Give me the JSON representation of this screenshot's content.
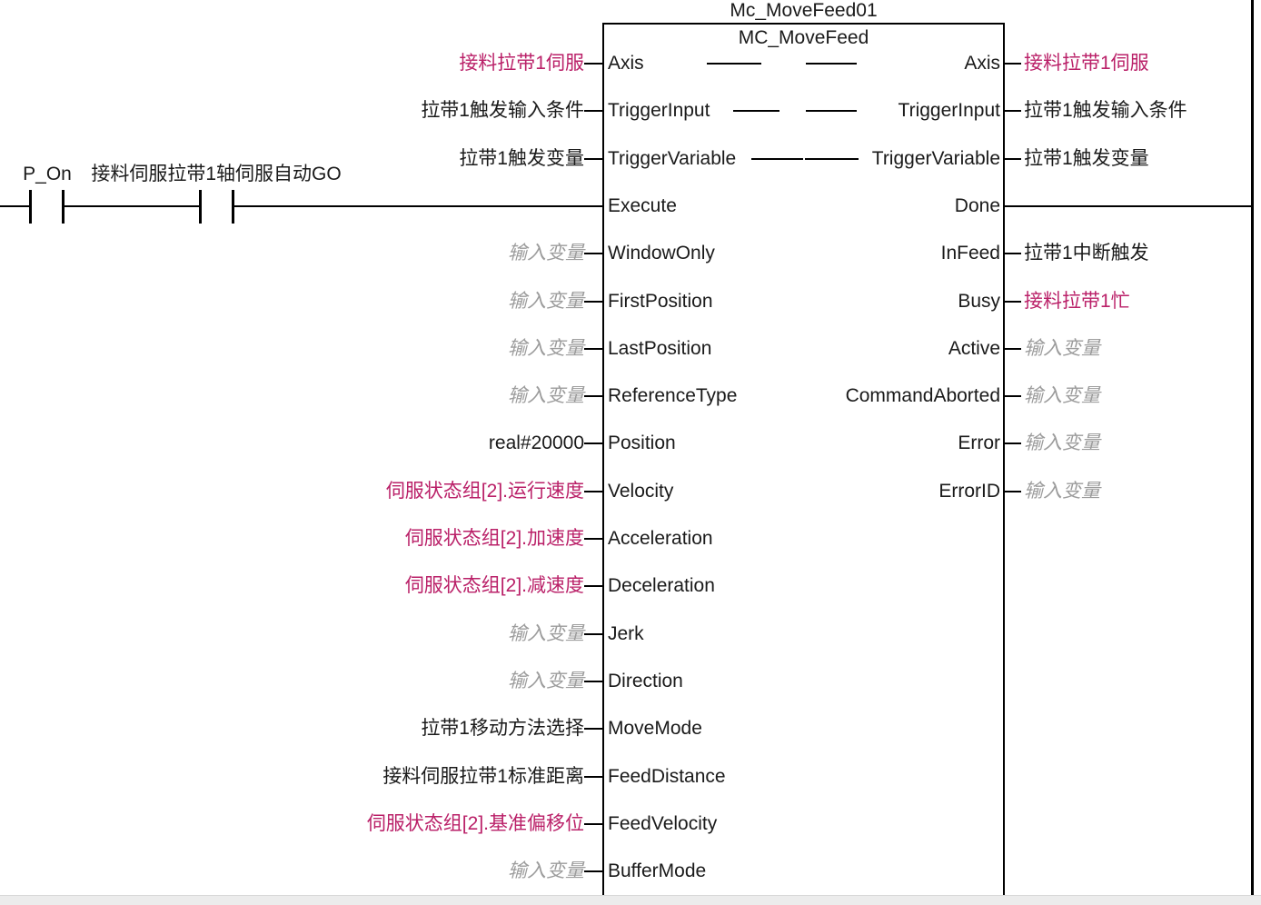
{
  "diagram": {
    "instance_name": "Mc_MoveFeed01",
    "function_block": "MC_MoveFeed",
    "rung": {
      "contacts": [
        {
          "label": "P_On"
        },
        {
          "label": "接料伺服拉带1轴伺服自动GO"
        }
      ]
    },
    "colors": {
      "line": "#000000",
      "text": "#1a1a1a",
      "variable_text": "#ba2068",
      "placeholder_text": "#9c9c9c"
    },
    "inputs": [
      {
        "pin": "Axis",
        "value": "接料拉带1伺服",
        "style": "variable"
      },
      {
        "pin": "TriggerInput",
        "value": "拉带1触发输入条件",
        "style": "default"
      },
      {
        "pin": "TriggerVariable",
        "value": "拉带1触发变量",
        "style": "default"
      },
      {
        "pin": "Execute",
        "value": "",
        "style": "rung"
      },
      {
        "pin": "WindowOnly",
        "value": "输入变量",
        "style": "placeholder"
      },
      {
        "pin": "FirstPosition",
        "value": "输入变量",
        "style": "placeholder"
      },
      {
        "pin": "LastPosition",
        "value": "输入变量",
        "style": "placeholder"
      },
      {
        "pin": "ReferenceType",
        "value": "输入变量",
        "style": "placeholder"
      },
      {
        "pin": "Position",
        "value": "real#20000",
        "style": "default"
      },
      {
        "pin": "Velocity",
        "value": "伺服状态组[2].运行速度",
        "style": "variable"
      },
      {
        "pin": "Acceleration",
        "value": "伺服状态组[2].加速度",
        "style": "variable"
      },
      {
        "pin": "Deceleration",
        "value": "伺服状态组[2].减速度",
        "style": "variable"
      },
      {
        "pin": "Jerk",
        "value": "输入变量",
        "style": "placeholder"
      },
      {
        "pin": "Direction",
        "value": "输入变量",
        "style": "placeholder"
      },
      {
        "pin": "MoveMode",
        "value": "拉带1移动方法选择",
        "style": "default"
      },
      {
        "pin": "FeedDistance",
        "value": "接料伺服拉带1标准距离",
        "style": "default"
      },
      {
        "pin": "FeedVelocity",
        "value": "伺服状态组[2].基准偏移位",
        "style": "variable"
      },
      {
        "pin": "BufferMode",
        "value": "输入变量",
        "style": "placeholder"
      }
    ],
    "outputs": [
      {
        "pin": "Axis",
        "value": "接料拉带1伺服",
        "style": "variable"
      },
      {
        "pin": "TriggerInput",
        "value": "拉带1触发输入条件",
        "style": "default"
      },
      {
        "pin": "TriggerVariable",
        "value": "拉带1触发变量",
        "style": "default"
      },
      {
        "pin": "Done",
        "value": "",
        "style": "rung"
      },
      {
        "pin": "InFeed",
        "value": "拉带1中断触发",
        "style": "default"
      },
      {
        "pin": "Busy",
        "value": "接料拉带1忙",
        "style": "variable"
      },
      {
        "pin": "Active",
        "value": "输入变量",
        "style": "placeholder"
      },
      {
        "pin": "CommandAborted",
        "value": "输入变量",
        "style": "placeholder"
      },
      {
        "pin": "Error",
        "value": "输入变量",
        "style": "placeholder"
      },
      {
        "pin": "ErrorID",
        "value": "输入变量",
        "style": "placeholder"
      }
    ]
  }
}
